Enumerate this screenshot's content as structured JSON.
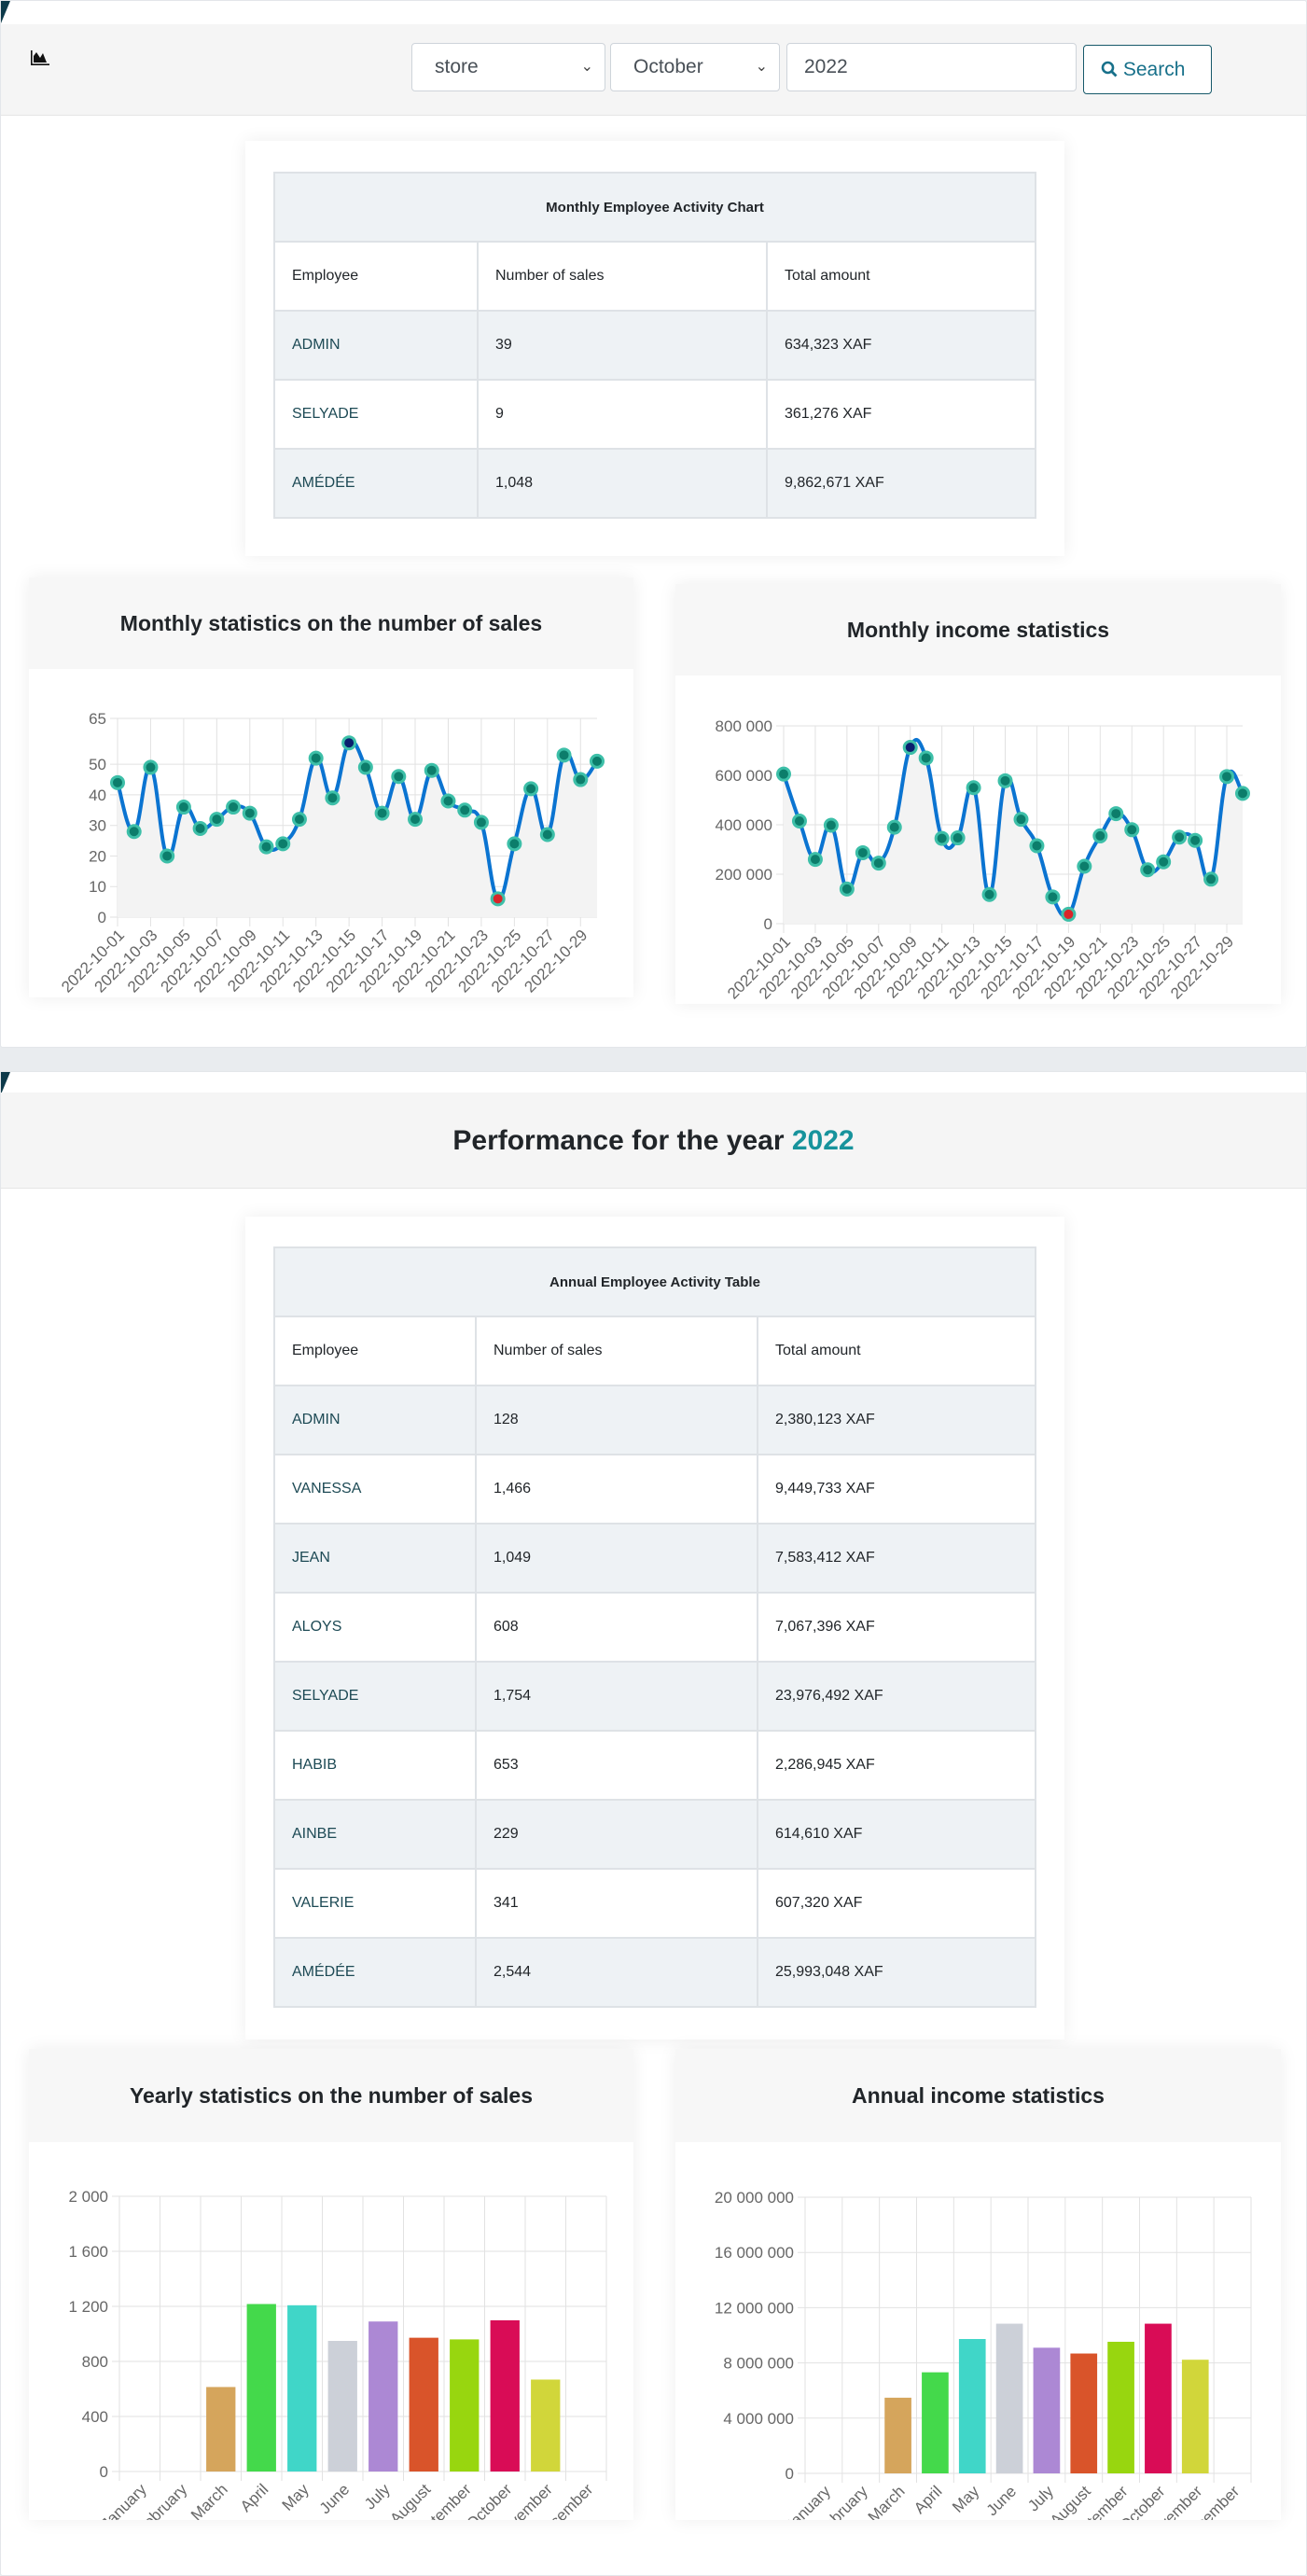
{
  "toolbar": {
    "store_select": "store",
    "month_select": "October",
    "year_input": "2022",
    "search_label": "Search",
    "icons": {
      "chart": "area-chart-icon",
      "search": "search-icon"
    }
  },
  "monthly_table": {
    "title": "Monthly Employee Activity Chart",
    "headers": [
      "Employee",
      "Number of sales",
      "Total amount"
    ],
    "rows": [
      [
        "ADMIN",
        "39",
        "634,323 XAF"
      ],
      [
        "SELYADE",
        "9",
        "361,276 XAF"
      ],
      [
        "AMÉDÉE",
        "1,048",
        "9,862,671 XAF"
      ]
    ]
  },
  "year_section": {
    "title": "Performance for the year",
    "year": "2022"
  },
  "annual_table": {
    "title": "Annual Employee Activity Table",
    "headers": [
      "Employee",
      "Number of sales",
      "Total amount"
    ],
    "rows": [
      [
        "ADMIN",
        "128",
        "2,380,123 XAF"
      ],
      [
        "VANESSA",
        "1,466",
        "9,449,733 XAF"
      ],
      [
        "JEAN",
        "1,049",
        "7,583,412 XAF"
      ],
      [
        "ALOYS",
        "608",
        "7,067,396 XAF"
      ],
      [
        "SELYADE",
        "1,754",
        "23,976,492 XAF"
      ],
      [
        "HABIB",
        "653",
        "2,286,945 XAF"
      ],
      [
        "AINBE",
        "229",
        "614,610 XAF"
      ],
      [
        "VALERIE",
        "341",
        "607,320 XAF"
      ],
      [
        "AMÉDÉE",
        "2,544",
        "25,993,048 XAF"
      ]
    ]
  },
  "chart_data": [
    {
      "type": "line",
      "title": "Monthly statistics on the number of sales",
      "ylim": [
        0,
        65
      ],
      "yticks": [
        "0",
        "10",
        "20",
        "30",
        "40",
        "50",
        "65"
      ],
      "ytickvals": [
        0,
        10,
        20,
        30,
        40,
        50,
        65
      ],
      "x": [
        "2022-10-01",
        "2022-10-02",
        "2022-10-03",
        "2022-10-04",
        "2022-10-05",
        "2022-10-06",
        "2022-10-07",
        "2022-10-08",
        "2022-10-09",
        "2022-10-10",
        "2022-10-11",
        "2022-10-12",
        "2022-10-13",
        "2022-10-14",
        "2022-10-15",
        "2022-10-16",
        "2022-10-17",
        "2022-10-18",
        "2022-10-19",
        "2022-10-20",
        "2022-10-21",
        "2022-10-22",
        "2022-10-23",
        "2022-10-24",
        "2022-10-25",
        "2022-10-26",
        "2022-10-27",
        "2022-10-28",
        "2022-10-29",
        "2022-10-30"
      ],
      "values": [
        44,
        28,
        49,
        20,
        36,
        29,
        32,
        36,
        34,
        23,
        24,
        32,
        52,
        39,
        57,
        49,
        34,
        46,
        32,
        48,
        38,
        35,
        31,
        6,
        24,
        42,
        27,
        53,
        45,
        51
      ]
    },
    {
      "type": "line",
      "title": "Monthly income statistics",
      "ylim": [
        0,
        800000
      ],
      "yticks": [
        "0",
        "200 000",
        "400 000",
        "600 000",
        "800 000"
      ],
      "ytickvals": [
        0,
        200000,
        400000,
        600000,
        800000
      ],
      "x": [
        "2022-10-01",
        "2022-10-02",
        "2022-10-03",
        "2022-10-04",
        "2022-10-05",
        "2022-10-06",
        "2022-10-07",
        "2022-10-08",
        "2022-10-09",
        "2022-10-10",
        "2022-10-11",
        "2022-10-12",
        "2022-10-13",
        "2022-10-14",
        "2022-10-15",
        "2022-10-16",
        "2022-10-17",
        "2022-10-18",
        "2022-10-19",
        "2022-10-20",
        "2022-10-21",
        "2022-10-22",
        "2022-10-23",
        "2022-10-24",
        "2022-10-25",
        "2022-10-26",
        "2022-10-27",
        "2022-10-28",
        "2022-10-29",
        "2022-10-30"
      ],
      "values": [
        605000,
        415000,
        260000,
        398000,
        140000,
        287000,
        245000,
        390000,
        713000,
        670000,
        345000,
        347000,
        550000,
        118000,
        578000,
        422000,
        315000,
        108000,
        38000,
        232000,
        355000,
        445000,
        380000,
        218000,
        250000,
        350000,
        337000,
        180000,
        595000,
        527000
      ]
    },
    {
      "type": "bar",
      "title": "Yearly statistics on the number of sales",
      "ylim": [
        0,
        2000
      ],
      "yticks": [
        "0",
        "400",
        "800",
        "1 200",
        "1 600",
        "2 000"
      ],
      "ytickvals": [
        0,
        400,
        800,
        1200,
        1600,
        2000
      ],
      "categories": [
        "January",
        "February",
        "March",
        "April",
        "May",
        "June",
        "July",
        "August",
        "September",
        "October",
        "November",
        "December"
      ],
      "values": [
        0,
        0,
        614,
        1217,
        1208,
        949,
        1090,
        972,
        960,
        1099,
        668,
        0
      ]
    },
    {
      "type": "bar",
      "title": "Annual income statistics",
      "ylim": [
        0,
        20000000
      ],
      "yticks": [
        "0",
        "4 000 000",
        "8 000 000",
        "12 000 000",
        "16 000 000",
        "20 000 000"
      ],
      "ytickvals": [
        0,
        4000000,
        8000000,
        12000000,
        16000000,
        20000000
      ],
      "categories": [
        "January",
        "February",
        "March",
        "April",
        "May",
        "June",
        "July",
        "August",
        "September",
        "October",
        "November",
        "December"
      ],
      "values": [
        0,
        0,
        5480000,
        7320000,
        9730000,
        10840000,
        9100000,
        8680000,
        9530000,
        10840000,
        8230000,
        0
      ]
    }
  ],
  "colors": {
    "line": "#0b74d1",
    "point_fill": "#0c7d6b",
    "point_ring": "#3dbfa8",
    "max_point": "#0a1f6e",
    "min_point": "#d9252a",
    "accent": "#17939c",
    "bars": [
      "#d5a55c",
      "#d5a55c",
      "#d5a55c",
      "#44d94b",
      "#40d6c8",
      "#ccd0d8",
      "#ac88d4",
      "#d9542a",
      "#98d60f",
      "#d90c56",
      "#d1d63a",
      "#d1d63a"
    ]
  }
}
